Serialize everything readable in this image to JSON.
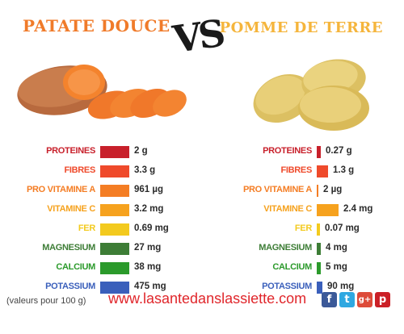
{
  "titles": {
    "left": "PATATE DOUCE",
    "vs": "VS",
    "right": "POMME DE TERRE"
  },
  "nutrients": [
    {
      "label": "PROTEINES",
      "color": "#c8202b",
      "left_value": "2 g",
      "left_amount": 2,
      "right_value": "0.27 g",
      "right_amount": 0.27
    },
    {
      "label": "FIBRES",
      "color": "#ef4a2b",
      "left_value": "3.3 g",
      "left_amount": 3.3,
      "right_value": "1.3 g",
      "right_amount": 1.3
    },
    {
      "label": "PRO VITAMINE A",
      "color": "#f47d24",
      "left_value": "961 µg",
      "left_amount": 961,
      "right_value": "2 µg",
      "right_amount": 2
    },
    {
      "label": "VITAMINE C",
      "color": "#f6a21e",
      "left_value": "3.2 mg",
      "left_amount": 3.2,
      "right_value": "2.4 mg",
      "right_amount": 2.4
    },
    {
      "label": "FER",
      "color": "#f3ca1e",
      "left_value": "0.69 mg",
      "left_amount": 0.69,
      "right_value": "0.07 mg",
      "right_amount": 0.07
    },
    {
      "label": "MAGNESIUM",
      "color": "#3d7d36",
      "left_value": "27 mg",
      "left_amount": 27,
      "right_value": "4 mg",
      "right_amount": 4
    },
    {
      "label": "CALCIUM",
      "color": "#2b9a2b",
      "left_value": "38 mg",
      "left_amount": 38,
      "right_value": "5 mg",
      "right_amount": 5
    },
    {
      "label": "POTASSIUM",
      "color": "#3a5fbb",
      "left_value": "475 mg",
      "left_amount": 475,
      "right_value": "90 mg",
      "right_amount": 90
    }
  ],
  "footer": {
    "note": "(valeurs pour 100 g)",
    "website": "www.lasantedanslassiette.com",
    "social_icons": [
      "facebook-icon",
      "twitter-icon",
      "google-plus-icon",
      "pinterest-icon"
    ]
  }
}
